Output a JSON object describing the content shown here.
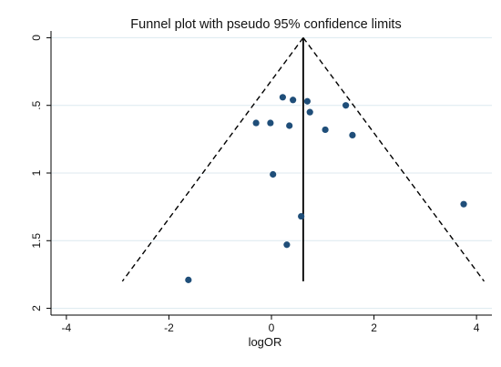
{
  "chart_data": {
    "type": "scatter",
    "title": "Funnel plot with pseudo 95% confidence limits",
    "xlabel": "logOR",
    "ylabel": "",
    "xlim": [
      -4.3,
      4.3
    ],
    "ylim": [
      2.05,
      -0.05
    ],
    "y_reversed": true,
    "x_ticks": [
      -4,
      -2,
      0,
      2,
      4
    ],
    "x_tick_labels": [
      "-4",
      "-2",
      "0",
      "2",
      "4"
    ],
    "y_ticks": [
      0,
      0.5,
      1,
      1.5,
      2
    ],
    "y_tick_labels": [
      "0",
      ".5",
      "1",
      "1.5",
      "2"
    ],
    "grid": "horizontal",
    "pooled_estimate": 0.62,
    "pooled_line_range": [
      0,
      1.8
    ],
    "confidence_limits": {
      "label": "pseudo 95% confidence limits",
      "se_max": 1.8,
      "z": 1.96
    },
    "colors": {
      "points": "#1f4e79",
      "grid": "#dce9ef",
      "lines": "#000000"
    },
    "points": [
      {
        "x": 0.22,
        "y": 0.44
      },
      {
        "x": 0.42,
        "y": 0.46
      },
      {
        "x": 0.7,
        "y": 0.47
      },
      {
        "x": 0.75,
        "y": 0.55
      },
      {
        "x": 1.45,
        "y": 0.5
      },
      {
        "x": -0.3,
        "y": 0.63
      },
      {
        "x": -0.02,
        "y": 0.63
      },
      {
        "x": 0.35,
        "y": 0.65
      },
      {
        "x": 1.05,
        "y": 0.68
      },
      {
        "x": 1.58,
        "y": 0.72
      },
      {
        "x": 0.03,
        "y": 1.01
      },
      {
        "x": 3.75,
        "y": 1.23
      },
      {
        "x": 0.58,
        "y": 1.32
      },
      {
        "x": 0.3,
        "y": 1.53
      },
      {
        "x": -1.62,
        "y": 1.79
      }
    ]
  }
}
